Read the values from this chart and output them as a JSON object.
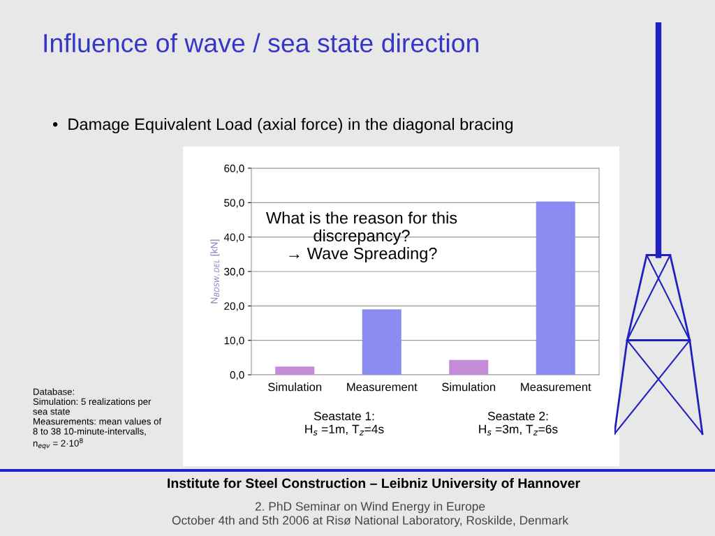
{
  "chart_data": {
    "type": "bar",
    "title": "Influence of wave / sea state direction",
    "subtitle": "•  Damage Equivalent Load (axial force) in the diagonal bracing",
    "ylabel": "N$_{BDSW,DEL}$ [kN]",
    "categories": [
      "Simulation",
      "Measurement",
      "Simulation",
      "Measurement"
    ],
    "values": [
      2.4,
      19,
      4.3,
      50.3
    ],
    "colors": [
      "#c48cd8",
      "#8a8cf2",
      "#c48cd8",
      "#8a8cf2"
    ],
    "ylim": [
      0,
      60
    ],
    "yticks": [
      {
        "value": 0,
        "label": "0,0"
      },
      {
        "value": 10,
        "label": "10,0"
      },
      {
        "value": 20,
        "label": "20,0"
      },
      {
        "value": 30,
        "label": "30,0"
      },
      {
        "value": 40,
        "label": "40,0"
      },
      {
        "value": 50,
        "label": "50,0"
      },
      {
        "value": 60,
        "label": "60,0"
      }
    ],
    "grid": "y",
    "annotations": [
      "What is the reason for this\ndiscrepancy?\n→ Wave Spreading?",
      "Seastate 1:\nH$_{s}$ =1m, T$_{z}$=4s",
      "Seastate 2:\nH$_{s}$ =3m, T$_{z}$=6s",
      "Database:\nSimulation: 5 realizations per\nsea state\nMeasurements: mean values of\n8 to 38 10-minute-intervalls,\nn$_{eqv}$ = 2·10$^{8}$",
      "Institute for Steel Construction – Leibniz University of Hannover",
      "2. PhD Seminar on Wind Energy in Europe\nOctober 4th and 5th 2006 at Risø National Laboratory, Roskilde, Denmark"
    ]
  }
}
